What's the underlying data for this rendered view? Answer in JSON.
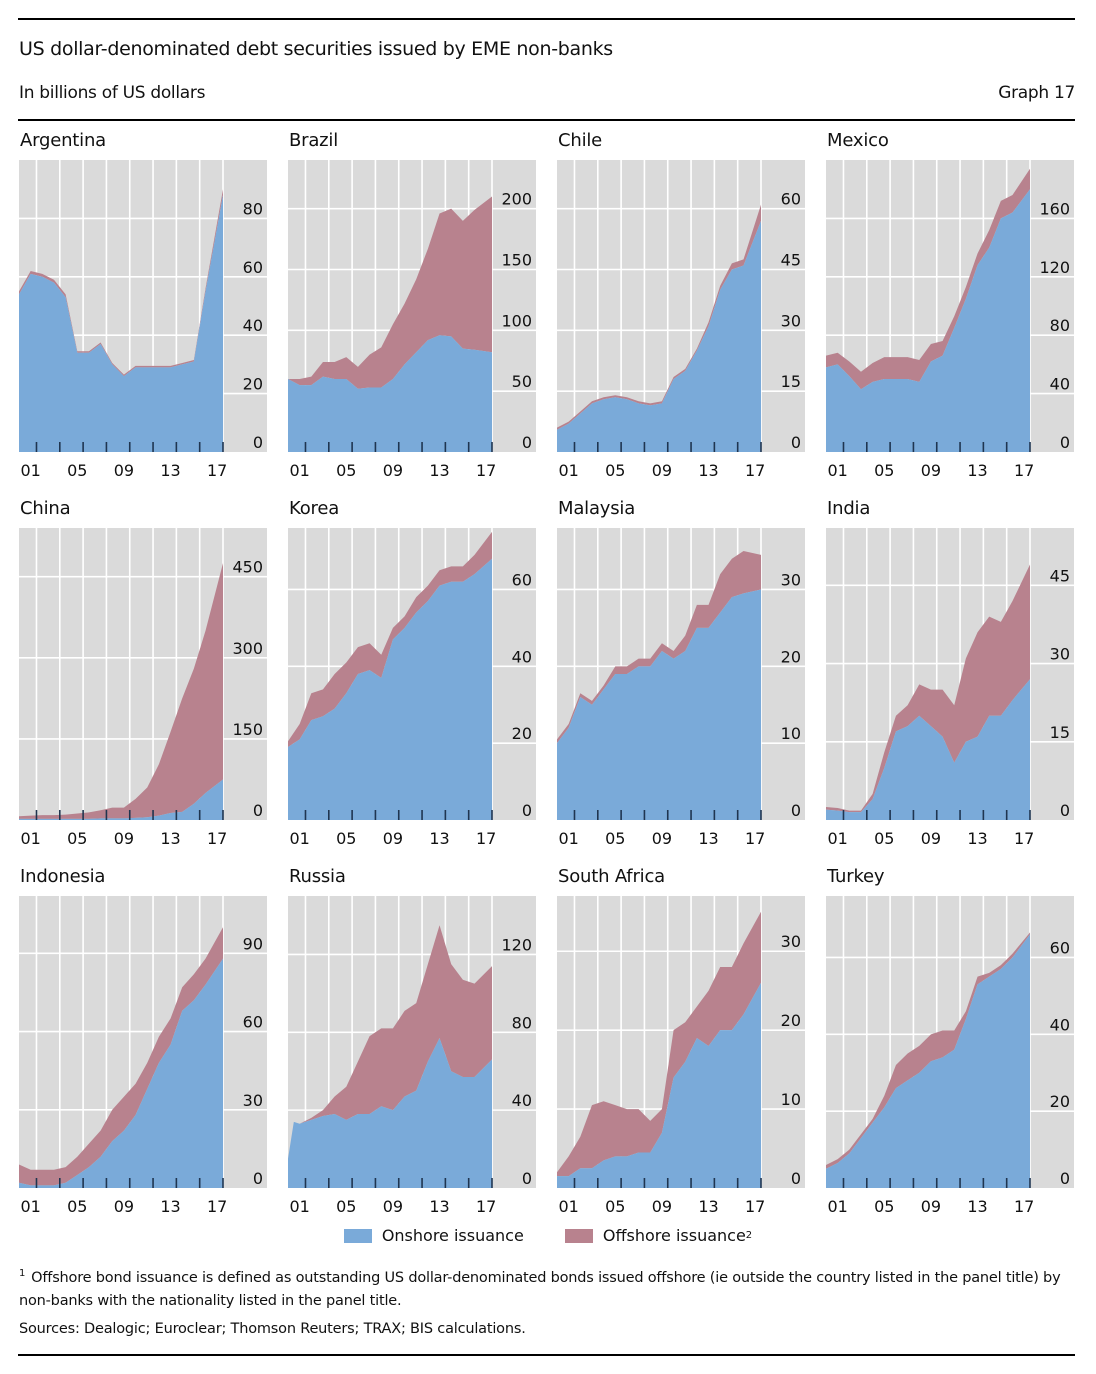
{
  "header": {
    "title": "US dollar-denominated debt securities issued by EME non-banks",
    "subtitle": "In billions of US dollars",
    "graph_number": "Graph 17"
  },
  "legend": {
    "items": [
      {
        "label": "Onshore issuance",
        "sup": "",
        "color": "#7aaad9"
      },
      {
        "label": "Offshore issuance",
        "sup": "2",
        "color": "#b8828e"
      }
    ]
  },
  "footnote": {
    "marker": "1",
    "text": "Offshore bond issuance is defined as outstanding US dollar-denominated bonds issued offshore (ie outside the country listed in the panel title) by non-banks with the nationality listed in the panel title."
  },
  "sources": "Sources: Dealogic; Euroclear; Thomson Reuters; TRAX; BIS calculations.",
  "colors": {
    "onshore": "#7aaad9",
    "offshore": "#b8828e",
    "plot_bg": "#dadada",
    "grid": "#ffffff",
    "tick": "#1f3550"
  },
  "chart_data": [
    {
      "type": "area",
      "stacked": true,
      "title": "Argentina",
      "x": [
        2000,
        2001,
        2002,
        2003,
        2004,
        2005,
        2006,
        2007,
        2008,
        2009,
        2010,
        2011,
        2012,
        2013,
        2014,
        2015,
        2016,
        2017.5
      ],
      "series": [
        {
          "name": "Onshore issuance",
          "values": [
            54,
            61,
            60,
            58,
            53,
            34,
            34,
            37,
            30,
            26,
            29,
            29,
            29,
            29,
            30,
            31,
            55,
            88
          ]
        },
        {
          "name": "Offshore issuance",
          "values": [
            1,
            1,
            1,
            1,
            1,
            0.5,
            0.5,
            0.5,
            0.5,
            0.5,
            0.5,
            0.5,
            0.5,
            0.5,
            0.5,
            0.5,
            1,
            2
          ]
        }
      ],
      "x_ticks": [
        "01",
        "05",
        "09",
        "13",
        "17"
      ],
      "ylim": [
        0,
        100
      ],
      "y_ticks": [
        0,
        20,
        40,
        60,
        80
      ],
      "y_axis": "right",
      "grid": true
    },
    {
      "type": "area",
      "stacked": true,
      "title": "Brazil",
      "x": [
        2000,
        2001,
        2002,
        2003,
        2004,
        2005,
        2006,
        2007,
        2008,
        2009,
        2010,
        2011,
        2012,
        2013,
        2014,
        2015,
        2016,
        2017.5
      ],
      "series": [
        {
          "name": "Onshore issuance",
          "values": [
            60,
            55,
            55,
            62,
            60,
            60,
            52,
            53,
            53,
            60,
            72,
            82,
            92,
            96,
            95,
            85,
            84,
            82
          ]
        },
        {
          "name": "Offshore issuance",
          "values": [
            0,
            5,
            7,
            12,
            14,
            18,
            18,
            27,
            33,
            45,
            50,
            60,
            75,
            100,
            105,
            105,
            115,
            128
          ]
        }
      ],
      "x_ticks": [
        "01",
        "05",
        "09",
        "13",
        "17"
      ],
      "ylim": [
        0,
        240
      ],
      "y_ticks": [
        0,
        50,
        100,
        150,
        200
      ],
      "y_axis": "right",
      "grid": true
    },
    {
      "type": "area",
      "stacked": true,
      "title": "Chile",
      "x": [
        2000,
        2001,
        2002,
        2003,
        2004,
        2005,
        2006,
        2007,
        2008,
        2009,
        2010,
        2011,
        2012,
        2013,
        2014,
        2015,
        2016,
        2017.5
      ],
      "series": [
        {
          "name": "Onshore issuance",
          "values": [
            5.5,
            7,
            9.5,
            12,
            13,
            13.5,
            13,
            12,
            11.5,
            12,
            18,
            20,
            25,
            31,
            40,
            45,
            46,
            57
          ]
        },
        {
          "name": "Offshore issuance",
          "values": [
            0.5,
            0.5,
            0.5,
            0.5,
            0.5,
            0.5,
            0.5,
            0.5,
            0.5,
            0.5,
            0.5,
            0.5,
            0.5,
            1,
            1,
            1.5,
            1.5,
            4
          ]
        }
      ],
      "x_ticks": [
        "01",
        "05",
        "09",
        "13",
        "17"
      ],
      "ylim": [
        0,
        72
      ],
      "y_ticks": [
        0,
        15,
        30,
        45,
        60
      ],
      "y_axis": "right",
      "grid": true
    },
    {
      "type": "area",
      "stacked": true,
      "title": "Mexico",
      "x": [
        2000,
        2001,
        2002,
        2003,
        2004,
        2005,
        2006,
        2007,
        2008,
        2009,
        2010,
        2011,
        2012,
        2013,
        2014,
        2015,
        2016,
        2017.5
      ],
      "series": [
        {
          "name": "Onshore issuance",
          "values": [
            58,
            60,
            52,
            43,
            48,
            50,
            50,
            50,
            48,
            62,
            66,
            85,
            105,
            128,
            140,
            160,
            164,
            180
          ]
        },
        {
          "name": "Offshore issuance",
          "values": [
            8,
            8,
            10,
            12,
            13,
            15,
            15,
            15,
            15,
            12,
            10,
            8,
            8,
            8,
            12,
            12,
            12,
            14
          ]
        }
      ],
      "x_ticks": [
        "01",
        "05",
        "09",
        "13",
        "17"
      ],
      "ylim": [
        0,
        200
      ],
      "y_ticks": [
        0,
        40,
        80,
        120,
        160
      ],
      "y_axis": "right",
      "grid": true
    },
    {
      "type": "area",
      "stacked": true,
      "title": "China",
      "x": [
        2000,
        2001,
        2002,
        2003,
        2004,
        2005,
        2006,
        2007,
        2008,
        2009,
        2010,
        2011,
        2012,
        2013,
        2014,
        2015,
        2016,
        2017.5
      ],
      "series": [
        {
          "name": "Onshore issuance",
          "values": [
            2,
            2,
            2,
            2,
            2,
            2,
            2,
            3,
            3,
            3,
            4,
            5,
            8,
            13,
            15,
            30,
            50,
            75
          ]
        },
        {
          "name": "Offshore issuance",
          "values": [
            5,
            6,
            7,
            7,
            8,
            10,
            12,
            15,
            20,
            20,
            35,
            55,
            95,
            150,
            210,
            250,
            300,
            400
          ]
        }
      ],
      "x_ticks": [
        "01",
        "05",
        "09",
        "13",
        "17"
      ],
      "ylim": [
        0,
        540
      ],
      "y_ticks": [
        0,
        150,
        300,
        450
      ],
      "y_axis": "right",
      "grid": true
    },
    {
      "type": "area",
      "stacked": true,
      "title": "Korea",
      "x": [
        2000,
        2001,
        2002,
        2003,
        2004,
        2005,
        2006,
        2007,
        2008,
        2009,
        2010,
        2011,
        2012,
        2013,
        2014,
        2015,
        2016,
        2017.5
      ],
      "series": [
        {
          "name": "Onshore issuance",
          "values": [
            19,
            21,
            26,
            27,
            29,
            33,
            38,
            39,
            37,
            47,
            50,
            54,
            57,
            61,
            62,
            62,
            64,
            68
          ]
        },
        {
          "name": "Offshore issuance",
          "values": [
            1.5,
            4,
            7,
            7,
            9,
            8,
            7,
            7,
            6,
            3,
            3,
            4,
            4,
            4,
            4,
            4,
            5,
            7
          ]
        }
      ],
      "x_ticks": [
        "01",
        "05",
        "09",
        "13",
        "17"
      ],
      "ylim": [
        0,
        76
      ],
      "y_ticks": [
        0,
        20,
        40,
        60
      ],
      "y_axis": "right",
      "grid": true
    },
    {
      "type": "area",
      "stacked": true,
      "title": "Malaysia",
      "x": [
        2000,
        2001,
        2002,
        2003,
        2004,
        2005,
        2006,
        2007,
        2008,
        2009,
        2010,
        2011,
        2012,
        2013,
        2014,
        2015,
        2016,
        2017.5
      ],
      "series": [
        {
          "name": "Onshore issuance",
          "values": [
            10,
            12,
            16,
            15,
            17,
            19,
            19,
            20,
            20,
            22,
            21,
            22,
            25,
            25,
            27,
            29,
            29.5,
            30
          ]
        },
        {
          "name": "Offshore issuance",
          "values": [
            0.5,
            0.5,
            0.5,
            0.5,
            0.5,
            1,
            1,
            1,
            1,
            1,
            1,
            2,
            3,
            3,
            5,
            5,
            5.5,
            4.5
          ]
        }
      ],
      "x_ticks": [
        "01",
        "05",
        "09",
        "13",
        "17"
      ],
      "ylim": [
        0,
        38
      ],
      "y_ticks": [
        0,
        10,
        20,
        30
      ],
      "y_axis": "right",
      "grid": true
    },
    {
      "type": "area",
      "stacked": true,
      "title": "India",
      "x": [
        2000,
        2001,
        2002,
        2003,
        2004,
        2005,
        2006,
        2007,
        2008,
        2009,
        2010,
        2011,
        2012,
        2013,
        2014,
        2015,
        2016,
        2017.5
      ],
      "series": [
        {
          "name": "Onshore issuance",
          "values": [
            2,
            1.8,
            1.5,
            1.5,
            4,
            10,
            17,
            18,
            20,
            18,
            16,
            11,
            15,
            16,
            20,
            20,
            23,
            27
          ]
        },
        {
          "name": "Offshore issuance",
          "values": [
            0.5,
            0.5,
            0.3,
            0.3,
            1,
            3,
            3,
            4,
            6,
            7,
            9,
            11,
            16,
            20,
            19,
            18,
            19,
            22
          ]
        }
      ],
      "x_ticks": [
        "01",
        "05",
        "09",
        "13",
        "17"
      ],
      "ylim": [
        0,
        56
      ],
      "y_ticks": [
        0,
        15,
        30,
        45
      ],
      "y_axis": "right",
      "grid": true
    },
    {
      "type": "area",
      "stacked": true,
      "title": "Indonesia",
      "x": [
        2000,
        2001,
        2002,
        2003,
        2004,
        2005,
        2006,
        2007,
        2008,
        2009,
        2010,
        2011,
        2012,
        2013,
        2014,
        2015,
        2016,
        2017.5
      ],
      "series": [
        {
          "name": "Onshore issuance",
          "values": [
            2,
            1,
            1,
            1,
            2,
            5,
            8,
            12,
            18,
            22,
            28,
            38,
            48,
            55,
            68,
            72,
            78,
            88
          ]
        },
        {
          "name": "Offshore issuance",
          "values": [
            7,
            6,
            6,
            6,
            6,
            7,
            9,
            10,
            12,
            13,
            12,
            10,
            10,
            10,
            9,
            10,
            10,
            12
          ]
        }
      ],
      "x_ticks": [
        "01",
        "05",
        "09",
        "13",
        "17"
      ],
      "ylim": [
        0,
        112
      ],
      "y_ticks": [
        0,
        30,
        60,
        90
      ],
      "y_axis": "right",
      "grid": true
    },
    {
      "type": "area",
      "stacked": true,
      "title": "Russia",
      "x": [
        2000,
        2000.5,
        2001,
        2002,
        2003,
        2004,
        2005,
        2006,
        2007,
        2008,
        2009,
        2010,
        2011,
        2012,
        2013,
        2014,
        2015,
        2016,
        2017.5
      ],
      "series": [
        {
          "name": "Onshore issuance",
          "values": [
            15,
            34,
            33,
            35,
            37,
            38,
            35,
            38,
            38,
            42,
            40,
            47,
            50,
            65,
            77,
            60,
            57,
            57,
            66
          ]
        },
        {
          "name": "Offshore issuance",
          "values": [
            0,
            0,
            0,
            1,
            3,
            9,
            17,
            27,
            40,
            40,
            42,
            44,
            45,
            50,
            58,
            55,
            50,
            48,
            48
          ]
        }
      ],
      "x_ticks": [
        "01",
        "05",
        "09",
        "13",
        "17"
      ],
      "ylim": [
        0,
        150
      ],
      "y_ticks": [
        0,
        40,
        80,
        120
      ],
      "y_axis": "right",
      "grid": true
    },
    {
      "type": "area",
      "stacked": true,
      "title": "South Africa",
      "x": [
        2000,
        2001,
        2002,
        2003,
        2004,
        2005,
        2006,
        2007,
        2008,
        2009,
        2010,
        2011,
        2012,
        2013,
        2014,
        2015,
        2016,
        2017.5
      ],
      "series": [
        {
          "name": "Onshore issuance",
          "values": [
            1.5,
            1.5,
            2.5,
            2.5,
            3.5,
            4,
            4,
            4.5,
            4.5,
            7,
            14,
            16,
            19,
            18,
            20,
            20,
            22,
            26
          ]
        },
        {
          "name": "Offshore issuance",
          "values": [
            0.5,
            2.5,
            4,
            8,
            7.5,
            6.5,
            6,
            5.5,
            4,
            3,
            6,
            5,
            4,
            7,
            8,
            8,
            9,
            9
          ]
        }
      ],
      "x_ticks": [
        "01",
        "05",
        "09",
        "13",
        "17"
      ],
      "ylim": [
        0,
        37
      ],
      "y_ticks": [
        0,
        10,
        20,
        30
      ],
      "y_axis": "right",
      "grid": true
    },
    {
      "type": "area",
      "stacked": true,
      "title": "Turkey",
      "x": [
        2000,
        2001,
        2002,
        2003,
        2004,
        2005,
        2006,
        2007,
        2008,
        2009,
        2010,
        2011,
        2012,
        2013,
        2014,
        2015,
        2016,
        2017.5
      ],
      "series": [
        {
          "name": "Onshore issuance",
          "values": [
            5,
            6.5,
            9,
            13,
            17,
            21,
            26,
            28,
            30,
            33,
            34,
            36,
            44,
            53,
            55,
            57,
            60,
            66
          ]
        },
        {
          "name": "Offshore issuance",
          "values": [
            1,
            1,
            1,
            1,
            1,
            3,
            6,
            7,
            7,
            7,
            7,
            5,
            2,
            2,
            1,
            1,
            1,
            0.5
          ]
        }
      ],
      "x_ticks": [
        "01",
        "05",
        "09",
        "13",
        "17"
      ],
      "ylim": [
        0,
        76
      ],
      "y_ticks": [
        0,
        20,
        40,
        60
      ],
      "y_axis": "right",
      "grid": true
    }
  ]
}
